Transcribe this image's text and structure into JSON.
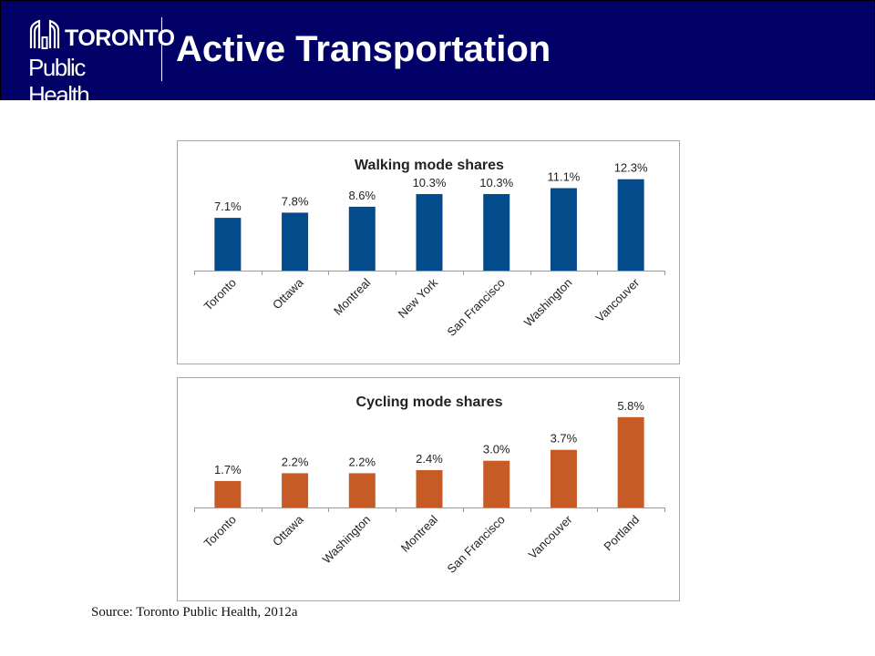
{
  "colors": {
    "header_bg": "#000066",
    "header_text": "#ffffff",
    "walking_bar": "#044b8c",
    "cycling_bar": "#c75b26"
  },
  "header": {
    "logo_line1": "TORONTO",
    "logo_line2": "Public Health",
    "title": "Active Transportation"
  },
  "chart_data": [
    {
      "type": "bar",
      "title": "Walking mode shares",
      "categories": [
        "Toronto",
        "Ottawa",
        "Montreal",
        "New York",
        "San Francisco",
        "Washington",
        "Vancouver"
      ],
      "values": [
        7.1,
        7.8,
        8.6,
        10.3,
        10.3,
        11.1,
        12.3
      ],
      "value_labels": [
        "7.1%",
        "7.8%",
        "8.6%",
        "10.3%",
        "10.3%",
        "11.1%",
        "12.3%"
      ],
      "xlabel": "",
      "ylabel": "",
      "ylim": [
        0,
        13
      ],
      "grid": false,
      "legend": "none",
      "color": "#044b8c"
    },
    {
      "type": "bar",
      "title": "Cycling mode shares",
      "categories": [
        "Toronto",
        "Ottawa",
        "Washington",
        "Montreal",
        "San Francisco",
        "Vancouver",
        "Portland"
      ],
      "values": [
        1.7,
        2.2,
        2.2,
        2.4,
        3.0,
        3.7,
        5.8
      ],
      "value_labels": [
        "1.7%",
        "2.2%",
        "2.2%",
        "2.4%",
        "3.0%",
        "3.7%",
        "5.8%"
      ],
      "xlabel": "",
      "ylabel": "",
      "ylim": [
        0,
        6.2
      ],
      "grid": false,
      "legend": "none",
      "color": "#c75b26"
    }
  ],
  "source": "Source: Toronto Public Health, 2012a"
}
